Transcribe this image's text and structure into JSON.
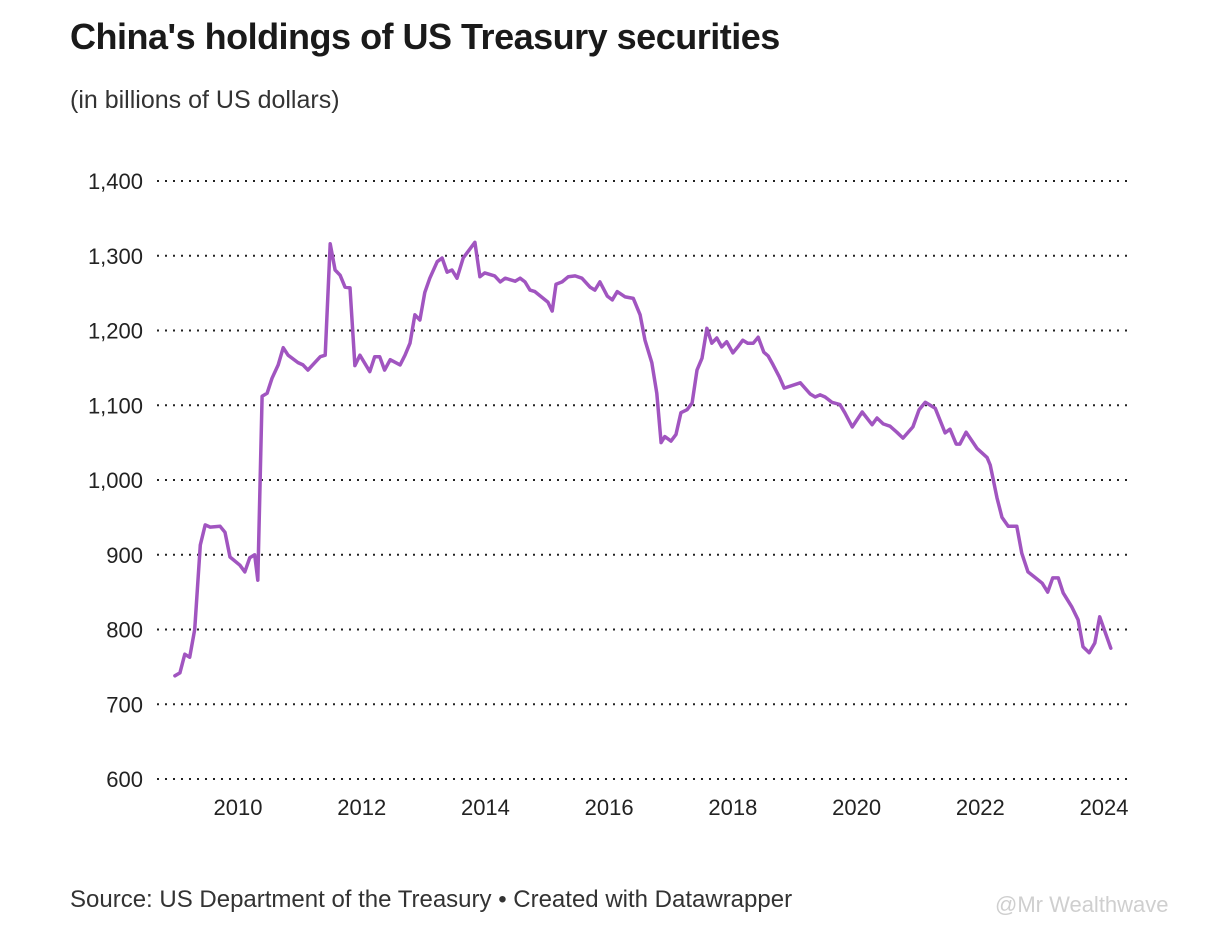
{
  "title": "China's holdings of US Treasury securities",
  "subtitle": "(in billions of US dollars)",
  "source": "Source: US Department of the Treasury • Created with Datawrapper",
  "watermark": "@Mr Wealthwave",
  "colors": {
    "line": "#a155c0",
    "grid": "#222222"
  },
  "chart_data": {
    "type": "line",
    "title": "China's holdings of US Treasury securities",
    "subtitle": "(in billions of US dollars)",
    "xlabel": "",
    "ylabel": "",
    "xlim": [
      2009,
      2024.2
    ],
    "ylim": [
      600,
      1400
    ],
    "grid": true,
    "y_ticks": [
      600,
      700,
      800,
      900,
      1000,
      1100,
      1200,
      1300,
      1400
    ],
    "y_tick_labels": [
      "600",
      "700",
      "800",
      "900",
      "1,000",
      "1,100",
      "1,200",
      "1,300",
      "1,400"
    ],
    "x_ticks": [
      2010,
      2012,
      2014,
      2016,
      2018,
      2020,
      2022,
      2024
    ],
    "x_tick_labels": [
      "2010",
      "2012",
      "2014",
      "2016",
      "2018",
      "2020",
      "2022",
      "2024"
    ],
    "series": [
      {
        "x": [
          2008.98,
          2009.06,
          2009.14,
          2009.22,
          2009.3,
          2009.39,
          2009.47,
          2009.55,
          2009.71,
          2009.79,
          2009.87,
          2010.03,
          2010.11,
          2010.19,
          2010.27,
          2010.32,
          2010.39,
          2010.47,
          2010.55,
          2010.65,
          2010.73,
          2010.81,
          2010.97,
          2011.05,
          2011.13,
          2011.33,
          2011.41,
          2011.49,
          2011.57,
          2011.65,
          2011.73,
          2011.81,
          2011.89,
          2011.97,
          2012.13,
          2012.21,
          2012.29,
          2012.37,
          2012.46,
          2012.62,
          2012.7,
          2012.78,
          2012.86,
          2012.94,
          2013.02,
          2013.1,
          2013.22,
          2013.3,
          2013.38,
          2013.46,
          2013.54,
          2013.64,
          2013.83,
          2013.91,
          2013.99,
          2014.15,
          2014.24,
          2014.32,
          2014.48,
          2014.56,
          2014.64,
          2014.72,
          2014.8,
          2015.01,
          2015.08,
          2015.14,
          2015.24,
          2015.34,
          2015.45,
          2015.56,
          2015.69,
          2015.77,
          2015.85,
          2015.97,
          2016.05,
          2016.13,
          2016.26,
          2016.39,
          2016.5,
          2016.58,
          2016.69,
          2016.77,
          2016.84,
          2016.9,
          2017.0,
          2017.08,
          2017.16,
          2017.26,
          2017.34,
          2017.42,
          2017.5,
          2017.58,
          2017.66,
          2017.74,
          2017.82,
          2017.9,
          2018.0,
          2018.08,
          2018.16,
          2018.24,
          2018.33,
          2018.41,
          2018.5,
          2018.57,
          2018.65,
          2018.75,
          2018.83,
          2019.09,
          2019.25,
          2019.33,
          2019.41,
          2019.49,
          2019.6,
          2019.73,
          2019.81,
          2019.93,
          2020.09,
          2020.25,
          2020.33,
          2020.43,
          2020.54,
          2020.65,
          2020.75,
          2020.91,
          2021.01,
          2021.11,
          2021.27,
          2021.43,
          2021.51,
          2021.61,
          2021.67,
          2021.77,
          2021.95,
          2022.11,
          2022.16,
          2022.2,
          2022.27,
          2022.35,
          2022.45,
          2022.59,
          2022.67,
          2022.77,
          2022.88,
          2023.0,
          2023.09,
          2023.17,
          2023.26,
          2023.34,
          2023.48,
          2023.58,
          2023.66,
          2023.76,
          2023.85,
          2023.93,
          2024.11
        ],
        "y": [
          738,
          742,
          767,
          763,
          800,
          913,
          940,
          937,
          938,
          930,
          897,
          886,
          877,
          896,
          900,
          866,
          1112,
          1116,
          1136,
          1154,
          1177,
          1167,
          1157,
          1154,
          1147,
          1165,
          1167,
          1316,
          1281,
          1274,
          1258,
          1257,
          1153,
          1167,
          1145,
          1165,
          1165,
          1147,
          1161,
          1154,
          1167,
          1183,
          1221,
          1214,
          1251,
          1270,
          1292,
          1297,
          1278,
          1281,
          1270,
          1297,
          1318,
          1272,
          1277,
          1273,
          1265,
          1270,
          1266,
          1270,
          1265,
          1254,
          1252,
          1238,
          1226,
          1262,
          1265,
          1272,
          1273,
          1270,
          1258,
          1254,
          1265,
          1246,
          1241,
          1252,
          1245,
          1243,
          1221,
          1187,
          1157,
          1116,
          1050,
          1058,
          1052,
          1061,
          1090,
          1094,
          1103,
          1147,
          1163,
          1203,
          1183,
          1190,
          1178,
          1185,
          1170,
          1178,
          1187,
          1183,
          1183,
          1191,
          1171,
          1166,
          1154,
          1138,
          1123,
          1130,
          1115,
          1111,
          1114,
          1111,
          1104,
          1101,
          1090,
          1071,
          1091,
          1074,
          1083,
          1075,
          1072,
          1064,
          1056,
          1071,
          1094,
          1104,
          1096,
          1063,
          1068,
          1048,
          1048,
          1064,
          1042,
          1030,
          1020,
          1004,
          976,
          950,
          938,
          938,
          902,
          877,
          870,
          862,
          850,
          869,
          869,
          849,
          830,
          813,
          777,
          769,
          782,
          817,
          775
        ]
      }
    ]
  }
}
